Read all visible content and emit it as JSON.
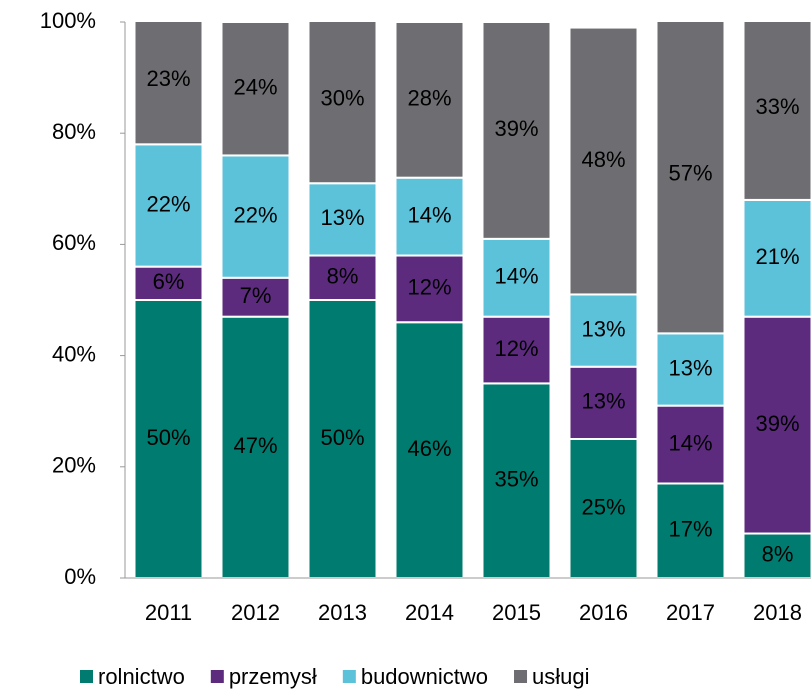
{
  "chart_data": {
    "type": "stacked_bar",
    "categories": [
      "2011",
      "2012",
      "2013",
      "2014",
      "2015",
      "2016",
      "2017",
      "2018"
    ],
    "series": [
      {
        "name": "rolnictwo",
        "color": "#007b6f",
        "values": [
          50,
          47,
          50,
          46,
          35,
          25,
          17,
          8
        ],
        "value_labels": [
          "50%",
          "47%",
          "50%",
          "46%",
          "35%",
          "25%",
          "17%",
          "8%"
        ]
      },
      {
        "name": "przemysł",
        "color": "#5c2b7e",
        "values": [
          6,
          7,
          8,
          12,
          12,
          13,
          14,
          39
        ],
        "value_labels": [
          "6%",
          "7%",
          "8%",
          "12%",
          "12%",
          "13%",
          "14%",
          "39%"
        ]
      },
      {
        "name": "budownictwo",
        "color": "#5bc2da",
        "values": [
          22,
          22,
          13,
          14,
          14,
          13,
          13,
          21
        ],
        "value_labels": [
          "22%",
          "22%",
          "13%",
          "14%",
          "14%",
          "13%",
          "13%",
          "21%"
        ]
      },
      {
        "name": "usługi",
        "color": "#6e6e72",
        "values": [
          23,
          24,
          30,
          28,
          39,
          48,
          57,
          33
        ],
        "value_labels": [
          "23%",
          "24%",
          "30%",
          "28%",
          "39%",
          "48%",
          "57%",
          "33%"
        ]
      }
    ],
    "ylim": [
      0,
      100
    ],
    "yticks": [
      {
        "value": 0,
        "label": "0%"
      },
      {
        "value": 20,
        "label": "20%"
      },
      {
        "value": 40,
        "label": "40%"
      },
      {
        "value": 60,
        "label": "60%"
      },
      {
        "value": 80,
        "label": "80%"
      },
      {
        "value": 100,
        "label": "100%"
      }
    ],
    "legend": "bottom"
  }
}
